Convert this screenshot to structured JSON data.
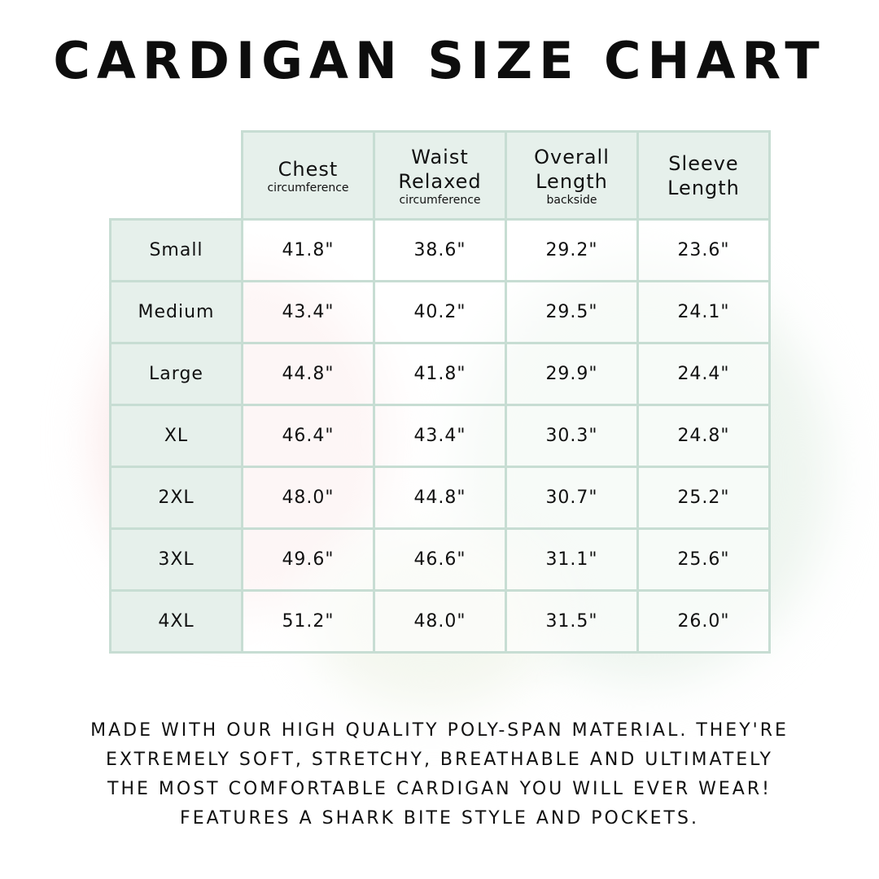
{
  "title": "CARDIGAN SIZE CHART",
  "colors": {
    "header_bg": "#e6f0eb",
    "border": "#c7ddd3",
    "text": "#111111"
  },
  "table": {
    "columns": [
      {
        "label": "Chest",
        "sub": "circumference"
      },
      {
        "label": "Waist Relaxed",
        "sub": "circumference"
      },
      {
        "label": "Overall Length",
        "sub": "backside"
      },
      {
        "label": "Sleeve Length",
        "sub": ""
      }
    ],
    "rows": [
      {
        "size": "Small",
        "values": [
          "41.8\"",
          "38.6\"",
          "29.2\"",
          "23.6\""
        ]
      },
      {
        "size": "Medium",
        "values": [
          "43.4\"",
          "40.2\"",
          "29.5\"",
          "24.1\""
        ]
      },
      {
        "size": "Large",
        "values": [
          "44.8\"",
          "41.8\"",
          "29.9\"",
          "24.4\""
        ]
      },
      {
        "size": "XL",
        "values": [
          "46.4\"",
          "43.4\"",
          "30.3\"",
          "24.8\""
        ]
      },
      {
        "size": "2XL",
        "values": [
          "48.0\"",
          "44.8\"",
          "30.7\"",
          "25.2\""
        ]
      },
      {
        "size": "3XL",
        "values": [
          "49.6\"",
          "46.6\"",
          "31.1\"",
          "25.6\""
        ]
      },
      {
        "size": "4XL",
        "values": [
          "51.2\"",
          "48.0\"",
          "31.5\"",
          "26.0\""
        ]
      }
    ]
  },
  "footer": {
    "lines": [
      "Made with our high quality poly-span material. They're",
      "extremely soft, stretchy, breathable and ultimately",
      "the most comfortable cardigan you will ever wear!",
      "Features a shark bite style and pockets."
    ]
  }
}
